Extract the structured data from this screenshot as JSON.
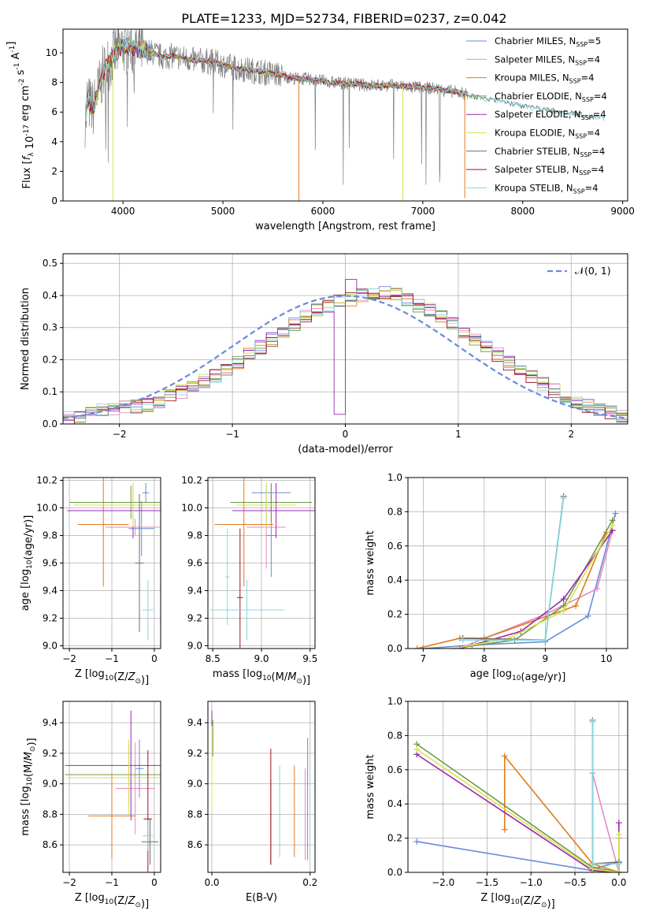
{
  "title": "PLATE=1233, MJD=52734, FIBERID=0237, z=0.042",
  "colors": {
    "series": [
      "#6a8bd9",
      "#e58ac4",
      "#e07b1e",
      "#6d9a48",
      "#9b27b0",
      "#d6e34c",
      "#6b6b6b",
      "#a0141c",
      "#86d8df"
    ],
    "grid": "#b0b0b0",
    "spectrum": "#808080",
    "normal_curve": "#6a8bd9"
  },
  "chart_data": [
    {
      "type": "line",
      "xlabel": "wavelength [Angstrom, rest frame]",
      "ylabel": "Flux [f_λ 10^-17 erg cm^-2 s^-1 A^-1]",
      "xlim": [
        3400,
        9050
      ],
      "ylim": [
        0,
        11.6
      ],
      "xticks": [
        4000,
        5000,
        6000,
        7000,
        8000,
        9000
      ],
      "yticks": [
        0,
        2,
        4,
        6,
        8,
        10
      ],
      "grid": false,
      "legend_position": "right",
      "legend": [
        {
          "pre": "Chabrier MILES, N",
          "sub": "SSP",
          "post": "=5"
        },
        {
          "pre": "Salpeter MILES, N",
          "sub": "SSP",
          "post": "=4"
        },
        {
          "pre": "Kroupa MILES, N",
          "sub": "SSP",
          "post": "=4"
        },
        {
          "pre": "Chabrier ELODIE, N",
          "sub": "SSP",
          "post": "=4"
        },
        {
          "pre": "Salpeter ELODIE, N",
          "sub": "SSP",
          "post": "=4"
        },
        {
          "pre": "Kroupa ELODIE, N",
          "sub": "SSP",
          "post": "=4"
        },
        {
          "pre": "Chabrier STELIB, N",
          "sub": "SSP",
          "post": "=4"
        },
        {
          "pre": "Salpeter STELIB, N",
          "sub": "SSP",
          "post": "=4"
        },
        {
          "pre": "Kroupa STELIB, N",
          "sub": "SSP",
          "post": "=4"
        }
      ],
      "spectrum_envelope": {
        "x": [
          3640,
          3700,
          3800,
          3900,
          4000,
          4100,
          4200,
          4300,
          4400,
          4500,
          4700,
          4900,
          5100,
          5300,
          5500,
          5700,
          5900,
          6100,
          6300,
          6500,
          6700,
          6900,
          7100,
          7300,
          7450,
          7600,
          7800,
          8000,
          8200,
          8400,
          8600,
          8800
        ],
        "y": [
          6.8,
          6.2,
          8.6,
          9.8,
          10.5,
          10.3,
          10.2,
          10.0,
          9.7,
          9.8,
          9.5,
          9.4,
          9.0,
          8.8,
          8.6,
          8.3,
          8.2,
          8.0,
          7.9,
          7.8,
          7.8,
          7.7,
          7.6,
          7.4,
          7.2,
          6.9,
          6.7,
          6.4,
          6.2,
          6.0,
          5.8,
          5.6
        ]
      },
      "model_dropouts": [
        {
          "series": 5,
          "x": 3900,
          "y_to": 0
        },
        {
          "series": 2,
          "x": 5760,
          "y_to": 0
        },
        {
          "series": 5,
          "x": 6800,
          "y_to": 0
        },
        {
          "series": 2,
          "x": 7420,
          "y_to": 0.2
        }
      ]
    },
    {
      "type": "histogram",
      "xlabel": "(data-model)/error",
      "ylabel": "Normed distribution",
      "xlim": [
        -2.5,
        2.5
      ],
      "ylim": [
        0,
        0.53
      ],
      "xticks": [
        -2,
        -1,
        0,
        1,
        2
      ],
      "yticks": [
        0.0,
        0.1,
        0.2,
        0.3,
        0.4,
        0.5
      ],
      "grid": true,
      "legend": "𝒩(0, 1)",
      "legend_position": "top-right",
      "bin_width": 0.1,
      "bin_start": -2.5,
      "base_values": [
        0.018,
        0.025,
        0.032,
        0.04,
        0.045,
        0.05,
        0.055,
        0.06,
        0.07,
        0.085,
        0.1,
        0.12,
        0.135,
        0.15,
        0.165,
        0.19,
        0.215,
        0.24,
        0.262,
        0.29,
        0.31,
        0.335,
        0.355,
        0.37,
        0.38,
        0.39,
        0.4,
        0.405,
        0.41,
        0.405,
        0.39,
        0.37,
        0.355,
        0.335,
        0.31,
        0.29,
        0.265,
        0.24,
        0.215,
        0.19,
        0.165,
        0.145,
        0.125,
        0.105,
        0.085,
        0.07,
        0.055,
        0.045,
        0.035,
        0.025
      ],
      "normal_curve": {
        "mean": 0,
        "sigma": 1
      }
    },
    {
      "type": "errorbar",
      "xlabel": "Z [log10(Z/Z☉)]",
      "ylabel": "age  [log10(age/yr)]",
      "xlim": [
        -2.15,
        0.15
      ],
      "ylim": [
        8.98,
        10.22
      ],
      "xticks": [
        -2,
        -1,
        0
      ],
      "yticks": [
        9.0,
        9.2,
        9.4,
        9.6,
        9.8,
        10.0,
        10.2
      ],
      "grid": true,
      "points": [
        {
          "s": 0,
          "x": -0.2,
          "xerr": 0.08,
          "y": 10.11,
          "yerr": 0.07
        },
        {
          "s": 0,
          "x": -0.3,
          "xerr": 0.3,
          "y": 9.85,
          "yerr": 0.2
        },
        {
          "s": 1,
          "x": -0.45,
          "xerr": 0.7,
          "y": 9.86,
          "yerr": 0.06
        },
        {
          "s": 2,
          "x": -1.2,
          "xerr": 0.6,
          "y": 9.88,
          "yerr": 0.45
        },
        {
          "s": 3,
          "x": -0.55,
          "xerr": 1.45,
          "y": 10.04,
          "yerr": 0.12
        },
        {
          "s": 4,
          "x": -0.5,
          "xerr": 1.55,
          "y": 9.98,
          "yerr": 0.2
        },
        {
          "s": 5,
          "x": -0.5,
          "xerr": 1.4,
          "y": 10.02,
          "yerr": 0.16
        },
        {
          "s": 6,
          "x": -0.35,
          "xerr": 0.1,
          "y": 9.6,
          "yerr": 0.5
        },
        {
          "s": 8,
          "x": -0.15,
          "xerr": 0.12,
          "y": 9.26,
          "yerr": 0.22
        }
      ]
    },
    {
      "type": "errorbar",
      "xlabel": "mass [log10(M/M☉)]",
      "ylabel": "",
      "xlim": [
        8.45,
        9.55
      ],
      "ylim": [
        8.98,
        10.22
      ],
      "xticks": [
        8.5,
        9.0,
        9.5
      ],
      "yticks": [
        9.0,
        9.2,
        9.4,
        9.6,
        9.8,
        10.0,
        10.2
      ],
      "grid": true,
      "points": [
        {
          "s": 0,
          "x": 9.1,
          "xerr": 0.2,
          "y": 10.11,
          "yerr": 0.06
        },
        {
          "s": 0,
          "x": 9.1,
          "xerr": 0.05,
          "y": 9.8,
          "yerr": 0.3
        },
        {
          "s": 1,
          "x": 9.05,
          "xerr": 0.2,
          "y": 9.86,
          "yerr": 0.3
        },
        {
          "s": 2,
          "x": 8.82,
          "xerr": 0.3,
          "y": 9.88,
          "yerr": 0.45
        },
        {
          "s": 3,
          "x": 9.1,
          "xerr": 0.42,
          "y": 10.04,
          "yerr": 0.14
        },
        {
          "s": 4,
          "x": 9.15,
          "xerr": 0.45,
          "y": 9.98,
          "yerr": 0.2
        },
        {
          "s": 5,
          "x": 9.05,
          "xerr": 0.3,
          "y": 10.02,
          "yerr": 0.17
        },
        {
          "s": 7,
          "x": 8.78,
          "xerr": 0.03,
          "y": 9.35,
          "yerr": 0.5
        },
        {
          "s": 8,
          "x": 8.85,
          "xerr": 0.38,
          "y": 9.26,
          "yerr": 0.22
        },
        {
          "s": 8,
          "x": 8.65,
          "xerr": 0.02,
          "y": 9.5,
          "yerr": 0.35
        }
      ]
    },
    {
      "type": "line",
      "xlabel": "age  [log10(age/yr)]",
      "ylabel": "mass weight",
      "xlim": [
        6.75,
        10.35
      ],
      "ylim": [
        0,
        1.0
      ],
      "xticks": [
        7,
        8,
        9,
        10
      ],
      "yticks": [
        0.0,
        0.2,
        0.4,
        0.6,
        0.8,
        1.0
      ],
      "grid": true,
      "series": [
        {
          "s": 0,
          "x": [
            7.0,
            7.8,
            9.0,
            9.7,
            10.15
          ],
          "y": [
            0.0,
            0.02,
            0.04,
            0.19,
            0.79
          ]
        },
        {
          "s": 1,
          "x": [
            7.6,
            8.0,
            9.0,
            9.85,
            10.1
          ],
          "y": [
            0.0,
            0.06,
            0.2,
            0.35,
            0.69
          ]
        },
        {
          "s": 2,
          "x": [
            6.9,
            7.6,
            8.0,
            9.5,
            10.0
          ],
          "y": [
            0.0,
            0.06,
            0.06,
            0.25,
            0.68
          ]
        },
        {
          "s": 3,
          "x": [
            7.5,
            8.5,
            9.3,
            10.1
          ],
          "y": [
            0.0,
            0.05,
            0.25,
            0.75
          ]
        },
        {
          "s": 4,
          "x": [
            7.6,
            8.6,
            9.3,
            10.1
          ],
          "y": [
            0.0,
            0.1,
            0.29,
            0.69
          ]
        },
        {
          "s": 5,
          "x": [
            7.5,
            8.4,
            9.3,
            10.1
          ],
          "y": [
            0.0,
            0.06,
            0.22,
            0.72
          ]
        },
        {
          "s": 6,
          "x": [
            7.65,
            9.0,
            9.3
          ],
          "y": [
            0.06,
            0.05,
            0.89
          ]
        },
        {
          "s": 8,
          "x": [
            7.65,
            9.0,
            9.3
          ],
          "y": [
            0.05,
            0.05,
            0.88
          ]
        }
      ]
    },
    {
      "type": "errorbar",
      "xlabel": "Z [log10(Z/Z☉)]",
      "ylabel": "mass [log10(M/M☉)]",
      "xlim": [
        -2.15,
        0.15
      ],
      "ylim": [
        8.42,
        9.54
      ],
      "xticks": [
        -2,
        -1,
        0
      ],
      "yticks": [
        8.6,
        8.8,
        9.0,
        9.2,
        9.4
      ],
      "grid": true,
      "points": [
        {
          "s": 0,
          "x": -0.35,
          "xerr": 0.1,
          "y": 9.1,
          "yerr": 0.19
        },
        {
          "s": 1,
          "x": -0.45,
          "xerr": 0.45,
          "y": 8.97,
          "yerr": 0.3
        },
        {
          "s": 2,
          "x": -1.0,
          "xerr": 0.55,
          "y": 8.79,
          "yerr": 0.28
        },
        {
          "s": 3,
          "x": -0.6,
          "xerr": 1.5,
          "y": 9.06,
          "yerr": 0.2
        },
        {
          "s": 4,
          "x": -0.55,
          "xerr": 1.55,
          "y": 9.12,
          "yerr": 0.36
        },
        {
          "s": 5,
          "x": -0.6,
          "xerr": 1.45,
          "y": 9.04,
          "yerr": 0.25
        },
        {
          "s": 6,
          "x": -0.1,
          "xerr": 0.2,
          "y": 8.62,
          "yerr": 0.15
        },
        {
          "s": 7,
          "x": -0.15,
          "xerr": 0.1,
          "y": 8.77,
          "yerr": 0.45
        },
        {
          "s": 8,
          "x": -0.15,
          "xerr": 0.12,
          "y": 8.66,
          "yerr": 0.1
        }
      ]
    },
    {
      "type": "errorbar",
      "xlabel": "E(B-V)",
      "ylabel": "",
      "xlim": [
        -0.008,
        0.21
      ],
      "ylim": [
        8.42,
        9.54
      ],
      "xticks": [
        0.0,
        0.2
      ],
      "yticks": [
        8.6,
        8.8,
        9.0,
        9.2,
        9.4
      ],
      "grid": true,
      "points": [
        {
          "s": 0,
          "x": 0.195,
          "xerr": 0,
          "y": 8.9,
          "yerr": 0.4
        },
        {
          "s": 1,
          "x": 0.19,
          "xerr": 0,
          "y": 8.8,
          "yerr": 0.3
        },
        {
          "s": 2,
          "x": 0.168,
          "xerr": 0,
          "y": 8.82,
          "yerr": 0.3
        },
        {
          "s": 3,
          "x": 0.002,
          "xerr": 0,
          "y": 9.3,
          "yerr": 0.12
        },
        {
          "s": 4,
          "x": 0.0,
          "xerr": 0,
          "y": 9.4,
          "yerr": 0.08
        },
        {
          "s": 5,
          "x": 0.0,
          "xerr": 0,
          "y": 9.1,
          "yerr": 0.28
        },
        {
          "s": 6,
          "x": 0.12,
          "xerr": 0,
          "y": 8.75,
          "yerr": 0.28
        },
        {
          "s": 7,
          "x": 0.12,
          "xerr": 0,
          "y": 8.85,
          "yerr": 0.38
        },
        {
          "s": 8,
          "x": 0.138,
          "xerr": 0,
          "y": 8.82,
          "yerr": 0.3
        }
      ]
    },
    {
      "type": "line",
      "xlabel": "Z [log10(Z/Z☉)]",
      "ylabel": "mass weight",
      "xlim": [
        -2.4,
        0.1
      ],
      "ylim": [
        0,
        1.0
      ],
      "xticks": [
        -2.0,
        -1.5,
        -1.0,
        -0.5,
        0.0
      ],
      "yticks": [
        0.0,
        0.2,
        0.4,
        0.6,
        0.8,
        1.0
      ],
      "grid": true,
      "series": [
        {
          "s": 0,
          "x": [
            -2.3,
            -0.3,
            -0.3,
            -0.3,
            0.0,
            0.0
          ],
          "y": [
            0.18,
            0.01,
            0.89,
            0.02,
            0.06,
            0.0
          ]
        },
        {
          "s": 1,
          "x": [
            -0.3,
            -0.3,
            0.0,
            0.0
          ],
          "y": [
            0.0,
            0.58,
            0.0,
            0.2
          ]
        },
        {
          "s": 2,
          "x": [
            -1.3,
            -1.3,
            -0.3,
            0.0,
            0.0
          ],
          "y": [
            0.25,
            0.68,
            0.05,
            0.0,
            0.0
          ]
        },
        {
          "s": 3,
          "x": [
            -2.3,
            -0.3,
            0.0,
            0.0
          ],
          "y": [
            0.75,
            0.03,
            0.0,
            0.06
          ]
        },
        {
          "s": 4,
          "x": [
            -2.3,
            -0.3,
            0.0,
            0.0
          ],
          "y": [
            0.69,
            0.01,
            0.0,
            0.29
          ]
        },
        {
          "s": 5,
          "x": [
            -2.3,
            -0.3,
            0.0,
            0.0
          ],
          "y": [
            0.72,
            0.02,
            0.0,
            0.22
          ]
        },
        {
          "s": 6,
          "x": [
            -0.3,
            -0.3,
            0.0
          ],
          "y": [
            0.88,
            0.05,
            0.06
          ]
        },
        {
          "s": 8,
          "x": [
            -0.3,
            -0.3,
            0.0
          ],
          "y": [
            0.88,
            0.05,
            0.05
          ]
        }
      ]
    }
  ]
}
